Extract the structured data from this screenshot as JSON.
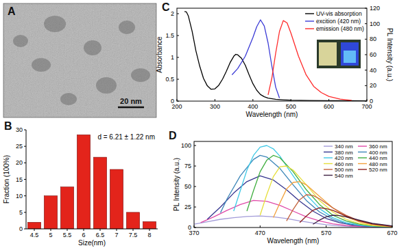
{
  "chart_data": [
    {
      "type": "image",
      "panel": "A",
      "scale_bar": "20 nm"
    },
    {
      "type": "bar",
      "panel": "B",
      "x_label": "Size(nm)",
      "y_label": "Fraction (100%)",
      "annotation": "d = 6.21 ± 1.22 nm",
      "categories": [
        "4.5",
        "5",
        "5.5",
        "6",
        "6.5",
        "7",
        "7.5",
        "8"
      ],
      "values": [
        2,
        10,
        12.7,
        28.5,
        21.7,
        18,
        5,
        2.2
      ],
      "color": "#e3241b",
      "ylim": [
        0,
        30
      ],
      "yticks": [
        0,
        5,
        10,
        15,
        20,
        25,
        30
      ]
    },
    {
      "type": "line",
      "panel": "C",
      "x_label": "Wavelength (nm)",
      "y_label": "Absorbance",
      "y2_label": "PL Intensity (a.u.)",
      "xlim": [
        200,
        700
      ],
      "xticks": [
        200,
        300,
        400,
        500,
        600,
        700
      ],
      "ylim": [
        0,
        2.125
      ],
      "yticks": [
        0,
        0.5,
        1,
        1.5,
        2
      ],
      "y2lim": [
        0,
        120
      ],
      "y2ticks": [
        0,
        20,
        40,
        60,
        80,
        100,
        120
      ],
      "legend": "upper right",
      "series": [
        {
          "name": "UV-vis absorption",
          "color": "#000000",
          "x": [
            220,
            225,
            230,
            240,
            250,
            260,
            270,
            280,
            290,
            300,
            310,
            320,
            330,
            340,
            350,
            355,
            360,
            370,
            380,
            390,
            400,
            410,
            420,
            430,
            440,
            460,
            480,
            500,
            550,
            600,
            650,
            700
          ],
          "values": [
            2.05,
            2.04,
            1.95,
            1.6,
            1.15,
            0.8,
            0.52,
            0.35,
            0.27,
            0.28,
            0.36,
            0.5,
            0.68,
            0.88,
            1.03,
            1.07,
            1.06,
            0.98,
            0.82,
            0.6,
            0.4,
            0.25,
            0.15,
            0.1,
            0.07,
            0.04,
            0.03,
            0.02,
            0.015,
            0.01,
            0.008,
            0.005
          ]
        },
        {
          "name": "excition (420 nm)",
          "color": "#3b3bd6",
          "axis": "y2",
          "x": [
            345,
            360,
            380,
            400,
            410,
            420,
            430,
            440,
            450,
            460,
            470
          ],
          "values": [
            34,
            42,
            58,
            82,
            96,
            105,
            97,
            75,
            45,
            18,
            4
          ]
        },
        {
          "name": "emission (480 nm)",
          "color": "#ff2a2a",
          "axis": "y2",
          "x": [
            440,
            450,
            460,
            470,
            480,
            490,
            500,
            520,
            540,
            560,
            580,
            600,
            630,
            660
          ],
          "values": [
            8,
            30,
            62,
            90,
            104,
            101,
            88,
            58,
            34,
            19,
            11,
            6,
            2.5,
            1
          ]
        }
      ]
    },
    {
      "type": "line",
      "panel": "D",
      "x_label": "Wavelength (nm)",
      "y_label": "PL Intensity (a.u.)",
      "xlim": [
        370,
        670
      ],
      "xticks": [
        370,
        470,
        570,
        670
      ],
      "ylim": [
        0,
        105
      ],
      "yticks": [
        0,
        25,
        50,
        75,
        100
      ],
      "legend": "upper right",
      "series": [
        {
          "name": "340 nm",
          "color": "#a29bd8",
          "x": [
            370,
            390,
            410,
            430,
            450,
            470,
            490,
            510,
            530,
            550,
            570,
            590,
            610,
            630,
            650,
            670
          ],
          "values": [
            4,
            7,
            10,
            12,
            13.5,
            14,
            13,
            11,
            8,
            5.5,
            3.5,
            2,
            1.2,
            0.7,
            0.4,
            0.2
          ]
        },
        {
          "name": "360 nm",
          "color": "#e04aa8",
          "x": [
            380,
            400,
            420,
            440,
            460,
            480,
            500,
            520,
            540,
            560,
            580,
            600,
            620,
            640,
            670
          ],
          "values": [
            6,
            13,
            21,
            28,
            33,
            32,
            27,
            20,
            13,
            8,
            4.5,
            2.5,
            1.3,
            0.7,
            0.3
          ]
        },
        {
          "name": "380 nm",
          "color": "#35358f",
          "x": [
            390,
            410,
            430,
            450,
            470,
            490,
            510,
            530,
            550,
            570,
            590,
            610,
            630,
            650,
            670
          ],
          "values": [
            10,
            25,
            42,
            56,
            63,
            58,
            46,
            32,
            20,
            11,
            6,
            3,
            1.5,
            0.7,
            0.3
          ]
        },
        {
          "name": "400 nm",
          "color": "#3c86b8",
          "x": [
            410,
            420,
            440,
            460,
            470,
            480,
            500,
            520,
            540,
            560,
            580,
            600,
            620,
            640,
            670
          ],
          "values": [
            18,
            35,
            63,
            83,
            88,
            86,
            72,
            52,
            33,
            19,
            10,
            5,
            2.5,
            1.2,
            0.4
          ]
        },
        {
          "name": "420 nm",
          "color": "#3fc9e6",
          "x": [
            430,
            440,
            450,
            460,
            470,
            480,
            490,
            500,
            520,
            540,
            560,
            580,
            600,
            620,
            640,
            670
          ],
          "values": [
            20,
            45,
            70,
            88,
            98,
            100,
            96,
            87,
            63,
            40,
            23,
            12,
            6,
            3,
            1.4,
            0.5
          ]
        },
        {
          "name": "440 nm",
          "color": "#3fae3f",
          "x": [
            450,
            460,
            470,
            480,
            490,
            500,
            520,
            540,
            560,
            580,
            600,
            620,
            640,
            670
          ],
          "values": [
            20,
            45,
            68,
            82,
            88,
            85,
            68,
            46,
            28,
            15,
            8,
            4,
            2,
            0.6
          ]
        },
        {
          "name": "460 nm",
          "color": "#e6de3a",
          "x": [
            470,
            480,
            490,
            500,
            510,
            520,
            540,
            560,
            580,
            600,
            620,
            640,
            670
          ],
          "values": [
            15,
            40,
            62,
            74,
            75,
            70,
            52,
            33,
            19,
            10,
            5,
            2.5,
            0.8
          ]
        },
        {
          "name": "480 nm",
          "color": "#f2a13c",
          "x": [
            490,
            500,
            510,
            520,
            530,
            540,
            560,
            580,
            600,
            620,
            640,
            670
          ],
          "values": [
            12,
            30,
            47,
            55,
            56,
            52,
            38,
            24,
            13,
            7,
            3.5,
            1
          ]
        },
        {
          "name": "500 nm",
          "color": "#c4623c",
          "x": [
            510,
            520,
            530,
            540,
            550,
            560,
            580,
            600,
            620,
            640,
            670
          ],
          "values": [
            8,
            22,
            34,
            40,
            39,
            35,
            24,
            15,
            8,
            4,
            1.2
          ]
        },
        {
          "name": "520 nm",
          "color": "#8e2020",
          "x": [
            530,
            540,
            550,
            560,
            570,
            580,
            600,
            620,
            640,
            670
          ],
          "values": [
            6,
            14,
            21,
            24,
            23,
            21,
            14,
            8,
            4.5,
            1.5
          ]
        },
        {
          "name": "540 nm",
          "color": "#3e2040",
          "x": [
            550,
            560,
            570,
            580,
            590,
            600,
            620,
            640,
            670
          ],
          "values": [
            4,
            9,
            13,
            15,
            14.5,
            13,
            9,
            5,
            2
          ]
        }
      ]
    }
  ]
}
